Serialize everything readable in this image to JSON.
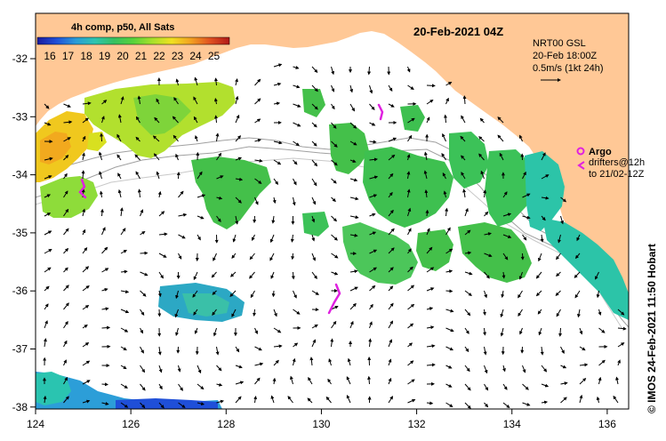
{
  "header": {
    "colorbar_title": "4h comp, p50, All Sats",
    "date_title": "20-Feb-2021 04Z"
  },
  "colorbar": {
    "ticks": [
      "16",
      "17",
      "18",
      "19",
      "20",
      "21",
      "22",
      "23",
      "24",
      "25"
    ],
    "colors": [
      "#1a1a9e",
      "#1f4fd8",
      "#2a9bd8",
      "#2ec4b0",
      "#36c060",
      "#58d23a",
      "#a8e02a",
      "#f0e020",
      "#f2a020",
      "#e05020",
      "#b01818"
    ]
  },
  "axes": {
    "x_ticks": [
      "124",
      "126",
      "128",
      "130",
      "132",
      "134",
      "136"
    ],
    "y_ticks": [
      "-32",
      "-33",
      "-34",
      "-35",
      "-36",
      "-37",
      "-38"
    ]
  },
  "current_legend": {
    "line1": "NRT00 GSL",
    "line2": "20-Feb 18:00Z",
    "line3": "0.5m/s (1kt 24h)"
  },
  "argo_legend": {
    "argo_label": "Argo",
    "drifters_line1": "drifters@12h",
    "drifters_line2": "to 21/02-12Z"
  },
  "credit": "© IMOS 24-Feb-2021 11:50 Hobart",
  "colors": {
    "land": "#ffc896",
    "ocean": "#ffffff",
    "drifter": "#e020e0",
    "isobath": "#a0a0a0"
  }
}
